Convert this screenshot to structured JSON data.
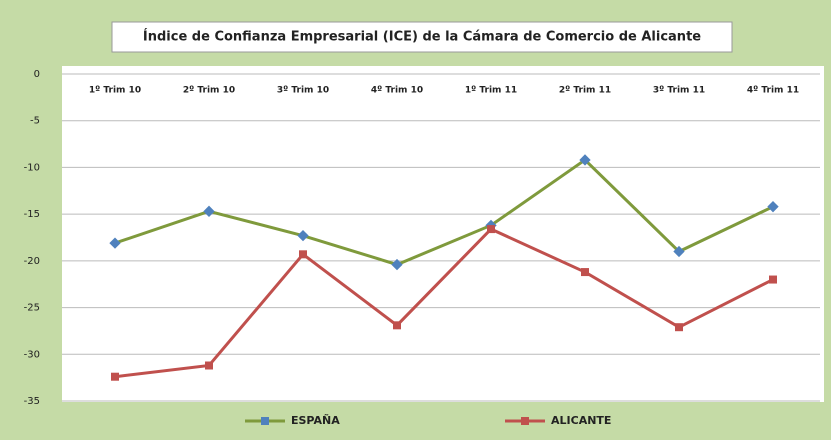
{
  "chart_data": {
    "type": "line",
    "title": "Índice de Confianza Empresarial (ICE) de la Cámara de Comercio de Alicante",
    "categories": [
      "1º Trim 10",
      "2º Trim 10",
      "3º Trim 10",
      "4º Trim 10",
      "1º Trim 11",
      "2º Trim 11",
      "3º Trim 11",
      "4º Trim 11"
    ],
    "series": [
      {
        "name": "ESPAÑA",
        "color": "#7f9a3c",
        "marker_color": "#4f81bd",
        "values": [
          -18.1,
          -14.7,
          -17.3,
          -20.4,
          -16.2,
          -9.2,
          -19.0,
          -14.2
        ]
      },
      {
        "name": "ALICANTE",
        "color": "#c0504d",
        "marker_color": "#c0504d",
        "values": [
          -32.4,
          -31.2,
          -19.3,
          -26.9,
          -16.6,
          -21.2,
          -27.1,
          -22.0
        ]
      }
    ],
    "ylim": [
      -35,
      0
    ],
    "yticks": [
      0,
      -5,
      -10,
      -15,
      -20,
      -25,
      -30,
      -35
    ],
    "grid": true
  }
}
